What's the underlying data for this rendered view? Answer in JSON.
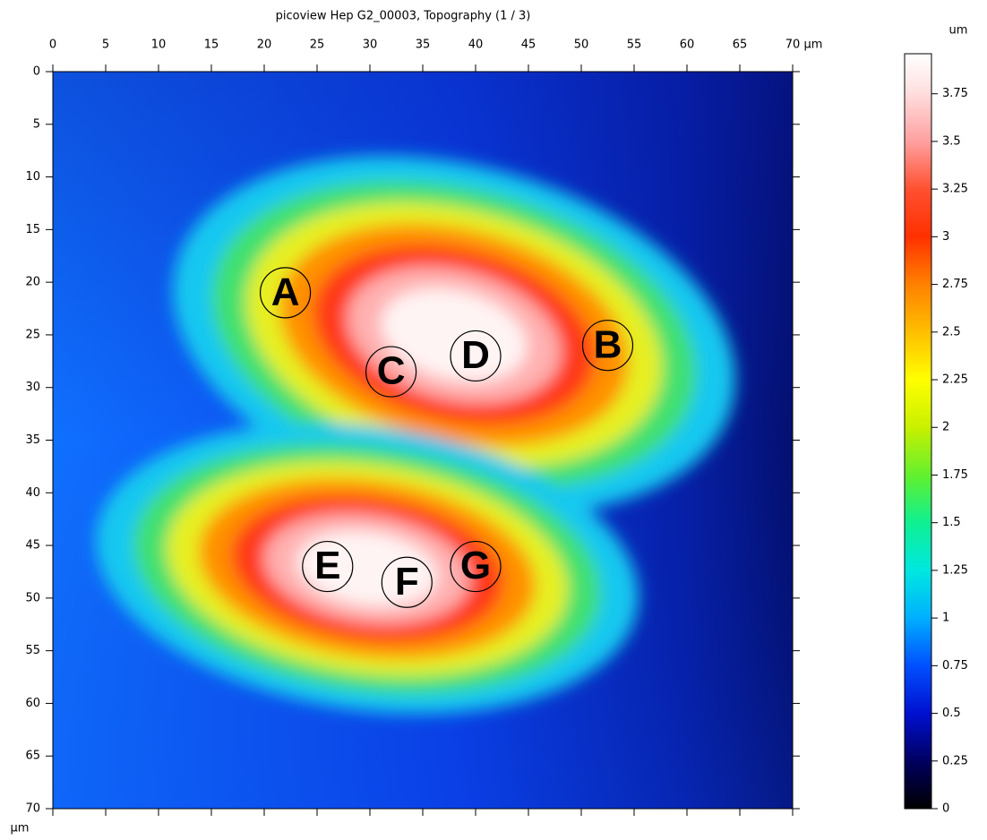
{
  "chart_data": {
    "type": "heatmap",
    "title": "picoview Hep G2_00003, Topography (1 / 3)",
    "x_unit": "µm",
    "y_unit": "µm",
    "xlim": [
      0,
      70
    ],
    "xticks": [
      0,
      5,
      10,
      15,
      20,
      25,
      30,
      35,
      40,
      45,
      50,
      55,
      60,
      65,
      70
    ],
    "ylim": [
      0,
      70
    ],
    "yticks": [
      0,
      5,
      10,
      15,
      20,
      25,
      30,
      35,
      40,
      45,
      50,
      55,
      60,
      65,
      70
    ],
    "colorbar": {
      "label": "um",
      "lim": [
        0,
        3.96
      ],
      "ticks": [
        0,
        0.25,
        0.5,
        0.75,
        1,
        1.25,
        1.5,
        1.75,
        2,
        2.25,
        2.5,
        2.75,
        3,
        3.25,
        3.5,
        3.75
      ]
    },
    "annotations": [
      {
        "text": "A",
        "x": 22,
        "y": 21
      },
      {
        "text": "B",
        "x": 52.5,
        "y": 26
      },
      {
        "text": "C",
        "x": 32,
        "y": 28.5
      },
      {
        "text": "D",
        "x": 40,
        "y": 27
      },
      {
        "text": "E",
        "x": 26,
        "y": 47
      },
      {
        "text": "F",
        "x": 33.5,
        "y": 48.5
      },
      {
        "text": "G",
        "x": 40,
        "y": 47
      }
    ]
  }
}
